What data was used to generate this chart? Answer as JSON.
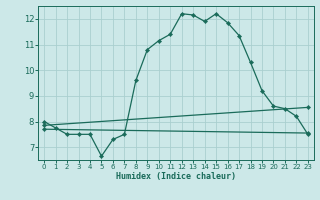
{
  "xlabel": "Humidex (Indice chaleur)",
  "bg_color": "#cce8e8",
  "grid_color": "#aacfcf",
  "line_color": "#1a6b5a",
  "xlim": [
    -0.5,
    23.5
  ],
  "ylim": [
    6.5,
    12.5
  ],
  "yticks": [
    7,
    8,
    9,
    10,
    11,
    12
  ],
  "xticks": [
    0,
    1,
    2,
    3,
    4,
    5,
    6,
    7,
    8,
    9,
    10,
    11,
    12,
    13,
    14,
    15,
    16,
    17,
    18,
    19,
    20,
    21,
    22,
    23
  ],
  "curve1_x": [
    0,
    1,
    2,
    3,
    4,
    5,
    6,
    7,
    8,
    9,
    10,
    11,
    12,
    13,
    14,
    15,
    16,
    17,
    18,
    19,
    20,
    21,
    22,
    23
  ],
  "curve1_y": [
    8.0,
    7.75,
    7.5,
    7.5,
    7.5,
    6.65,
    7.3,
    7.5,
    9.6,
    10.8,
    11.15,
    11.4,
    12.2,
    12.15,
    11.9,
    12.2,
    11.85,
    11.35,
    10.3,
    9.2,
    8.6,
    8.5,
    8.2,
    7.5
  ],
  "curve2_x": [
    0,
    23
  ],
  "curve2_y": [
    7.7,
    7.55
  ],
  "curve3_x": [
    0,
    23
  ],
  "curve3_y": [
    7.85,
    8.55
  ]
}
